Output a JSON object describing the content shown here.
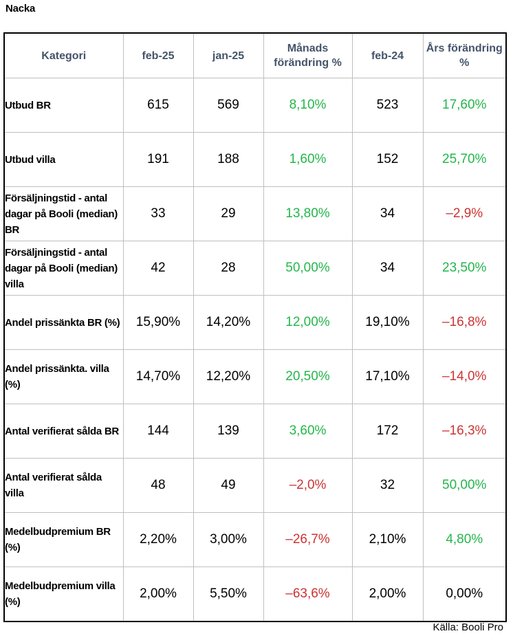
{
  "page": {
    "title": "Nacka",
    "source": "Källa: Booli Pro"
  },
  "colors": {
    "header_text": "#44546a",
    "positive": "#23b64b",
    "negative": "#cc3333",
    "border": "#bfbfbf"
  },
  "table": {
    "headers": [
      "Kategori",
      "feb-25",
      "jan-25",
      "Månads förändring %",
      "feb-24",
      "Års förändring %"
    ],
    "rows": [
      {
        "category": "Utbud BR",
        "feb25": "615",
        "jan25": "569",
        "monthly_change": "8,10%",
        "monthly_sign": "green",
        "feb24": "523",
        "yearly_change": "17,60%",
        "yearly_sign": "green"
      },
      {
        "category": "Utbud villa",
        "feb25": "191",
        "jan25": "188",
        "monthly_change": "1,60%",
        "monthly_sign": "green",
        "feb24": "152",
        "yearly_change": "25,70%",
        "yearly_sign": "green"
      },
      {
        "category": "Försäljningstid - antal dagar på Booli (median) BR",
        "feb25": "33",
        "jan25": "29",
        "monthly_change": "13,80%",
        "monthly_sign": "green",
        "feb24": "34",
        "yearly_change": "–2,9%",
        "yearly_sign": "red"
      },
      {
        "category": "Försäljningstid - antal dagar på Booli (median) villa",
        "feb25": "42",
        "jan25": "28",
        "monthly_change": "50,00%",
        "monthly_sign": "green",
        "feb24": "34",
        "yearly_change": "23,50%",
        "yearly_sign": "green"
      },
      {
        "category": "Andel prissänkta BR (%)",
        "feb25": "15,90%",
        "jan25": "14,20%",
        "monthly_change": "12,00%",
        "monthly_sign": "green",
        "feb24": "19,10%",
        "yearly_change": "–16,8%",
        "yearly_sign": "red"
      },
      {
        "category": "Andel prissänkta. villa (%)",
        "feb25": "14,70%",
        "jan25": "12,20%",
        "monthly_change": "20,50%",
        "monthly_sign": "green",
        "feb24": "17,10%",
        "yearly_change": "–14,0%",
        "yearly_sign": "red"
      },
      {
        "category": "Antal verifierat sålda BR",
        "feb25": "144",
        "jan25": "139",
        "monthly_change": "3,60%",
        "monthly_sign": "green",
        "feb24": "172",
        "yearly_change": "–16,3%",
        "yearly_sign": "red"
      },
      {
        "category": "Antal verifierat sålda villa",
        "feb25": "48",
        "jan25": "49",
        "monthly_change": "–2,0%",
        "monthly_sign": "red",
        "feb24": "32",
        "yearly_change": "50,00%",
        "yearly_sign": "green"
      },
      {
        "category": "Medelbudpremium BR (%)",
        "feb25": "2,20%",
        "jan25": "3,00%",
        "monthly_change": "–26,7%",
        "monthly_sign": "red",
        "feb24": "2,10%",
        "yearly_change": "4,80%",
        "yearly_sign": "green"
      },
      {
        "category": "Medelbudpremium villa (%)",
        "feb25": "2,00%",
        "jan25": "5,50%",
        "monthly_change": "–63,6%",
        "monthly_sign": "red",
        "feb24": "2,00%",
        "yearly_change": "0,00%",
        "yearly_sign": "black"
      }
    ]
  }
}
